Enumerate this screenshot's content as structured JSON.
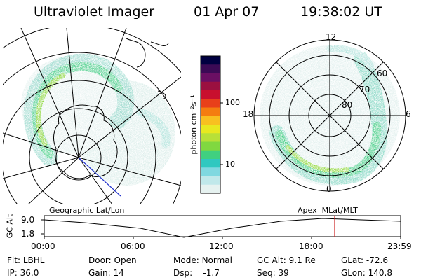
{
  "header": {
    "title": "Ultraviolet Imager",
    "date": "01 Apr 07",
    "time": "19:38:02 UT"
  },
  "colorbar": {
    "unit_label": "photon cm⁻²s⁻¹",
    "ticks": [
      "100",
      "10"
    ],
    "colors": [
      "#000040",
      "#3b0a55",
      "#6a0f63",
      "#9b1040",
      "#c8102e",
      "#e8401a",
      "#f47d10",
      "#f8c020",
      "#e8e820",
      "#b8e038",
      "#80d840",
      "#40d080",
      "#30c8c0",
      "#80d8e0",
      "#c0e8ea",
      "#e6f2f0"
    ]
  },
  "left_panel": {
    "caption": "Geographic Lat/Lon"
  },
  "right_panel": {
    "caption": "Apex  MLat/MLT",
    "mlt_labels": {
      "top": "12",
      "left": "18",
      "right": "6",
      "bottom": "0"
    },
    "lat_labels": [
      "60",
      "70",
      "80"
    ]
  },
  "altitude_strip": {
    "axis_label": "GC Alt",
    "y_ticks": [
      "9.0",
      "1.8"
    ],
    "x_ticks": [
      "00:00",
      "06:00",
      "12:00",
      "18:00",
      "23:59"
    ],
    "current_time_marker": "19:38",
    "marker_color": "#cc2222"
  },
  "info": {
    "row1": [
      {
        "label": "Flt:",
        "value": "LBHL"
      },
      {
        "label": "Door:",
        "value": "Open"
      },
      {
        "label": "Mode:",
        "value": "Normal"
      },
      {
        "label": "GC Alt:",
        "value": "9.1 Re"
      },
      {
        "label": "GLat:",
        "value": "-72.6"
      }
    ],
    "row2": [
      {
        "label": "IP:",
        "value": "36.0"
      },
      {
        "label": "Gain:",
        "value": "14"
      },
      {
        "label": "Dsp:",
        "value": "-1.7"
      },
      {
        "label": "Seq:",
        "value": "39"
      },
      {
        "label": "GLon:",
        "value": "140.8"
      }
    ]
  }
}
